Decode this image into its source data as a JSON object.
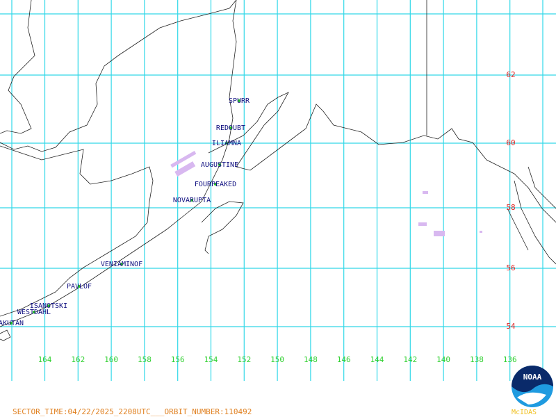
{
  "map": {
    "volcanoes": [
      "SPURR",
      "REDOUBT",
      "ILIAMNA",
      "AUGUSTINE",
      "FOURPEAKED",
      "NOVARUPTA",
      "VENIAMINOF",
      "PAVLOF",
      "ISANOTSKI",
      "WESTDAHL",
      "AKUTAN"
    ],
    "latitude_labels": [
      62,
      60,
      58,
      56,
      54
    ],
    "longitude_labels": [
      164,
      162,
      160,
      158,
      156,
      154,
      152,
      150,
      148,
      146,
      144,
      142,
      140,
      138,
      136
    ],
    "footer": "SECTOR_TIME:04/22/2025_2208UTC___ORBIT_NUMBER:110492",
    "brand": "McIDAS",
    "logo_text": "NOAA"
  }
}
